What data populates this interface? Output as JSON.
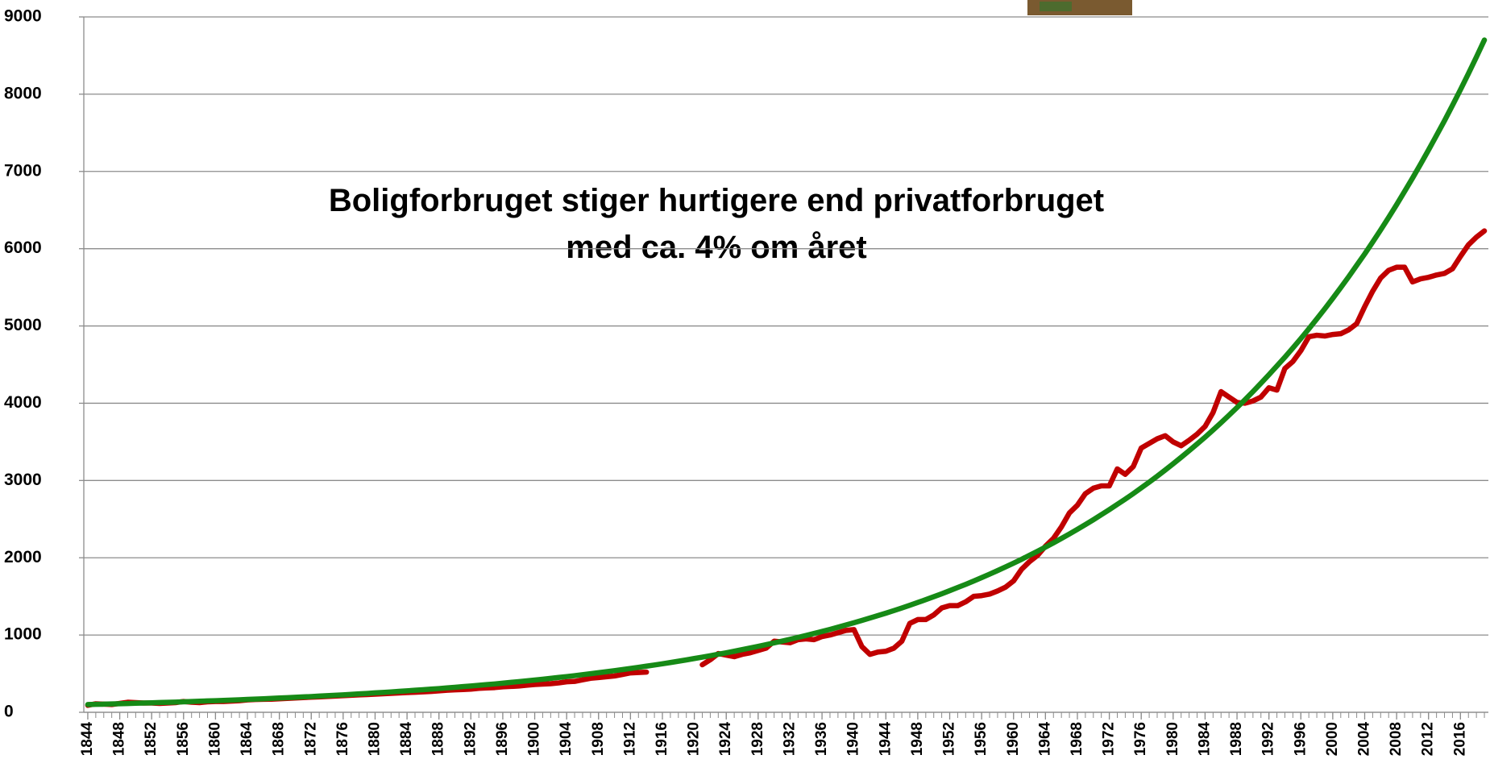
{
  "chart_data": {
    "type": "line",
    "annotation": [
      "Boligforbruget stiger hurtigere end privatforbruget",
      "med ca. 4% om året"
    ],
    "x": [
      1844,
      1845,
      1846,
      1847,
      1848,
      1849,
      1850,
      1851,
      1852,
      1853,
      1854,
      1855,
      1856,
      1857,
      1858,
      1859,
      1860,
      1861,
      1862,
      1863,
      1864,
      1865,
      1866,
      1867,
      1868,
      1869,
      1870,
      1871,
      1872,
      1873,
      1874,
      1875,
      1876,
      1877,
      1878,
      1879,
      1880,
      1881,
      1882,
      1883,
      1884,
      1885,
      1886,
      1887,
      1888,
      1889,
      1890,
      1891,
      1892,
      1893,
      1894,
      1895,
      1896,
      1897,
      1898,
      1899,
      1900,
      1901,
      1902,
      1903,
      1904,
      1905,
      1906,
      1907,
      1908,
      1909,
      1910,
      1911,
      1912,
      1913,
      1914,
      1915,
      1916,
      1917,
      1918,
      1919,
      1920,
      1921,
      1922,
      1923,
      1924,
      1925,
      1926,
      1927,
      1928,
      1929,
      1930,
      1931,
      1932,
      1933,
      1934,
      1935,
      1936,
      1937,
      1938,
      1939,
      1940,
      1941,
      1942,
      1943,
      1944,
      1945,
      1946,
      1947,
      1948,
      1949,
      1950,
      1951,
      1952,
      1953,
      1954,
      1955,
      1956,
      1957,
      1958,
      1959,
      1960,
      1961,
      1962,
      1963,
      1964,
      1965,
      1966,
      1967,
      1968,
      1969,
      1970,
      1971,
      1972,
      1973,
      1974,
      1975,
      1976,
      1977,
      1978,
      1979,
      1980,
      1981,
      1982,
      1983,
      1984,
      1985,
      1986,
      1987,
      1988,
      1989,
      1990,
      1991,
      1992,
      1993,
      1994,
      1995,
      1996,
      1997,
      1998,
      1999,
      2000,
      2001,
      2002,
      2003,
      2004,
      2005,
      2006,
      2007,
      2008,
      2009,
      2010,
      2011,
      2012,
      2013,
      2014,
      2015,
      2016,
      2017,
      2018,
      2019
    ],
    "series": [
      {
        "color": "#c00000",
        "values": [
          90,
          110,
          105,
          100,
          115,
          130,
          125,
          120,
          120,
          115,
          120,
          125,
          140,
          130,
          125,
          135,
          140,
          140,
          145,
          150,
          160,
          165,
          168,
          170,
          175,
          180,
          185,
          190,
          195,
          200,
          205,
          210,
          215,
          220,
          225,
          230,
          235,
          240,
          245,
          250,
          255,
          260,
          265,
          270,
          278,
          285,
          290,
          295,
          300,
          310,
          315,
          320,
          330,
          335,
          340,
          350,
          360,
          365,
          370,
          380,
          395,
          400,
          420,
          440,
          450,
          460,
          470,
          490,
          510,
          515,
          520,
          null,
          null,
          null,
          null,
          null,
          null,
          615,
          680,
          760,
          740,
          720,
          750,
          770,
          800,
          830,
          920,
          910,
          900,
          940,
          950,
          940,
          980,
          1000,
          1030,
          1060,
          1070,
          850,
          750,
          780,
          790,
          830,
          920,
          1150,
          1200,
          1200,
          1260,
          1350,
          1380,
          1380,
          1430,
          1500,
          1510,
          1530,
          1570,
          1620,
          1700,
          1850,
          1950,
          2030,
          2150,
          2250,
          2400,
          2580,
          2680,
          2830,
          2900,
          2930,
          2930,
          3150,
          3080,
          3180,
          3420,
          3480,
          3540,
          3580,
          3500,
          3450,
          3520,
          3600,
          3700,
          3880,
          4150,
          4080,
          4010,
          4000,
          4030,
          4080,
          4200,
          4170,
          4450,
          4540,
          4680,
          4860,
          4880,
          4870,
          4890,
          4900,
          4950,
          5030,
          5250,
          5450,
          5620,
          5720,
          5760,
          5760,
          5570,
          5610,
          5630,
          5660,
          5680,
          5740,
          5900,
          6050,
          6150,
          6230
        ]
      },
      {
        "color": "#168a16",
        "values": [
          100,
          103,
          105,
          108,
          111,
          114,
          117,
          120,
          123,
          126,
          129,
          132,
          136,
          139,
          143,
          147,
          150,
          154,
          158,
          162,
          167,
          171,
          175,
          180,
          185,
          189,
          194,
          199,
          204,
          210,
          215,
          221,
          226,
          232,
          238,
          244,
          251,
          257,
          264,
          271,
          278,
          285,
          292,
          300,
          307,
          315,
          323,
          332,
          340,
          349,
          358,
          367,
          377,
          387,
          397,
          407,
          417,
          428,
          439,
          451,
          462,
          474,
          487,
          499,
          512,
          525,
          539,
          553,
          567,
          582,
          597,
          612,
          628,
          644,
          661,
          678,
          696,
          714,
          732,
          751,
          770,
          790,
          811,
          832,
          853,
          875,
          898,
          921,
          945,
          970,
          994,
          1020,
          1046,
          1073,
          1101,
          1130,
          1159,
          1189,
          1220,
          1251,
          1283,
          1316,
          1350,
          1385,
          1421,
          1458,
          1496,
          1534,
          1574,
          1615,
          1656,
          1699,
          1743,
          1788,
          1834,
          1882,
          1930,
          1980,
          2032,
          2084,
          2138,
          2193,
          2250,
          2308,
          2368,
          2429,
          2492,
          2557,
          2623,
          2691,
          2759,
          2830,
          2904,
          2979,
          3056,
          3135,
          3216,
          3300,
          3385,
          3473,
          3561,
          3653,
          3748,
          3845,
          3944,
          4046,
          4151,
          4259,
          4369,
          4482,
          4596,
          4715,
          4837,
          4962,
          5091,
          5222,
          5358,
          5496,
          5638,
          5785,
          5932,
          6086,
          6243,
          6405,
          6570,
          6741,
          6915,
          7094,
          7278,
          7466,
          7657,
          7855,
          8058,
          8267,
          8481,
          8701
        ]
      }
    ],
    "xlim": [
      1843.5,
      2019.5
    ],
    "xticks": [
      1844,
      1848,
      1852,
      1856,
      1860,
      1864,
      1868,
      1872,
      1876,
      1880,
      1884,
      1888,
      1892,
      1896,
      1900,
      1904,
      1908,
      1912,
      1916,
      1920,
      1924,
      1928,
      1932,
      1936,
      1940,
      1944,
      1948,
      1952,
      1956,
      1960,
      1964,
      1968,
      1972,
      1976,
      1980,
      1984,
      1988,
      1992,
      1996,
      2000,
      2004,
      2008,
      2012,
      2016
    ],
    "ylim": [
      0,
      9000
    ],
    "yticks": [
      0,
      1000,
      2000,
      3000,
      4000,
      5000,
      6000,
      7000,
      8000,
      9000
    ],
    "grid": true
  }
}
